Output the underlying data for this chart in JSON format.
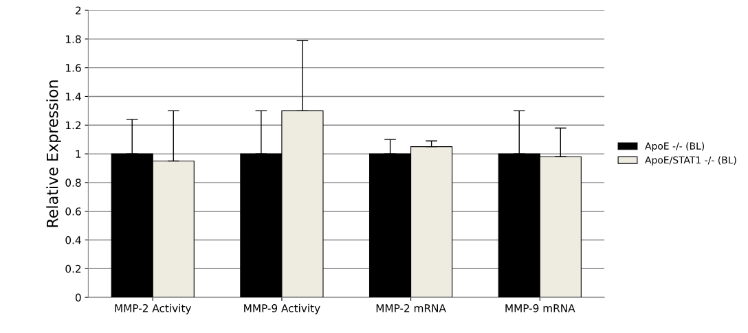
{
  "chart_data": {
    "type": "bar",
    "ylabel": "Relative Expression",
    "categories": [
      "MMP-2 Activity",
      "MMP-9 Activity",
      "MMP-2 mRNA",
      "MMP-9 mRNA"
    ],
    "series": [
      {
        "name": "ApoE -/- (BL)",
        "color": "#000000",
        "values": [
          1,
          1,
          1,
          1
        ],
        "errors": [
          [
            1,
            1.24
          ],
          [
            1,
            1.3
          ],
          [
            1,
            1.1
          ],
          [
            1,
            1.3
          ]
        ]
      },
      {
        "name": "ApoE/STAT1 -/- (BL)",
        "color": "#eeece1",
        "values": [
          0.95,
          1.3,
          1.05,
          0.98
        ],
        "errors": [
          [
            0.95,
            1.3
          ],
          [
            1.3,
            1.79
          ],
          [
            1.05,
            1.09
          ],
          [
            0.98,
            1.18
          ]
        ]
      }
    ],
    "ylim": [
      0,
      2
    ],
    "yticks": [
      0,
      0.2,
      0.4,
      0.6,
      0.8,
      1,
      1.2,
      1.4,
      1.6,
      1.8,
      2
    ],
    "grid": "y",
    "legend": "right"
  }
}
